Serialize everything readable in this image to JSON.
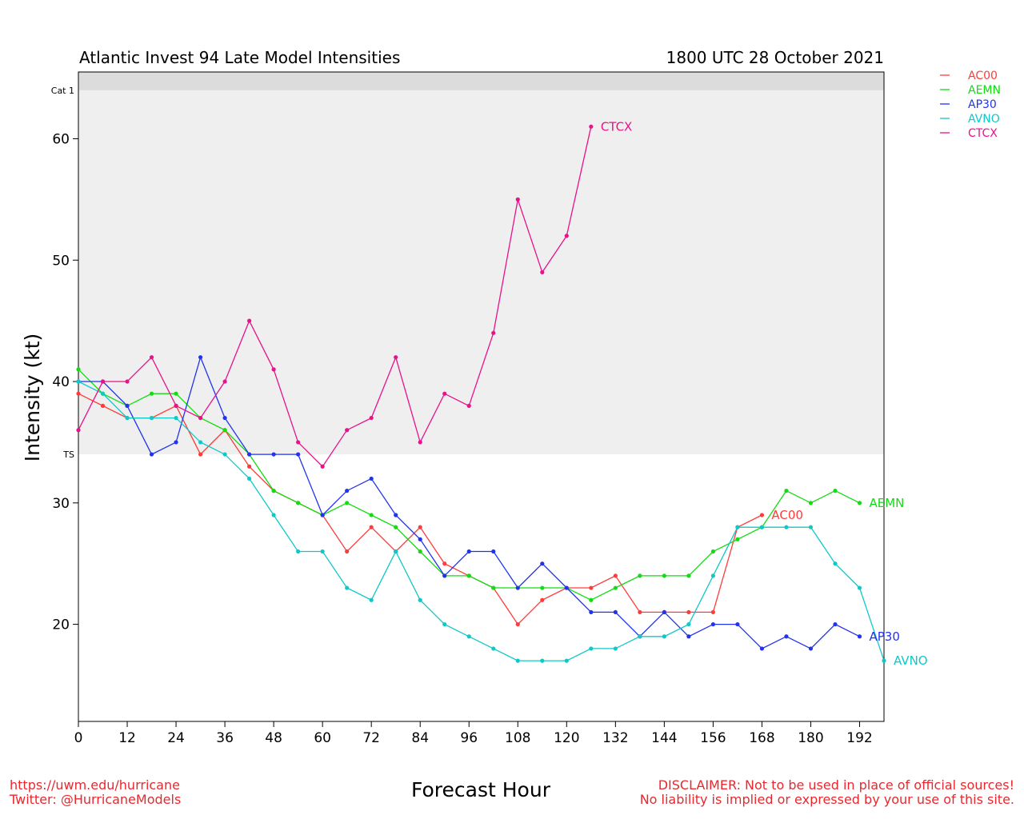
{
  "header": {
    "title_left": "Atlantic Invest 94 Late Model Intensities",
    "title_right": "1800 UTC 28 October 2021"
  },
  "footer": {
    "left_line1": "https://uwm.edu/hurricane",
    "left_line2": "Twitter: @HurricaneModels",
    "right_line1": "DISCLAIMER: Not to be used in place of official sources!",
    "right_line2": "No liability is implied or expressed by your use of this site."
  },
  "chart_data": {
    "type": "line",
    "title": "Atlantic Invest 94 Late Model Intensities",
    "subtitle": "1800 UTC 28 October 2021",
    "xlabel": "Forecast Hour",
    "ylabel": "Intensity (kt)",
    "xlim": [
      0,
      198
    ],
    "ylim": [
      12,
      65.5
    ],
    "x_ticks": [
      0,
      12,
      24,
      36,
      48,
      60,
      72,
      84,
      96,
      108,
      120,
      132,
      144,
      156,
      168,
      180,
      192
    ],
    "y_ticks": [
      20,
      30,
      40,
      50,
      60
    ],
    "bands": [
      {
        "label": "TS",
        "from": 34,
        "to": 64,
        "color": "#efefef"
      },
      {
        "label": "Cat 1",
        "from": 64,
        "to": 65.5,
        "color": "#dcdcdc"
      }
    ],
    "legend_position": "right of plot, top",
    "grid": false,
    "series": [
      {
        "name": "AC00",
        "color": "#ff3b3b",
        "x": [
          0,
          6,
          12,
          18,
          24,
          30,
          36,
          42,
          48,
          54,
          60,
          66,
          72,
          78,
          84,
          90,
          96,
          102,
          108,
          114,
          120,
          126,
          132,
          138,
          144,
          150,
          156,
          162,
          168
        ],
        "y": [
          39,
          38,
          37,
          37,
          38,
          34,
          36,
          33,
          31,
          30,
          29,
          26,
          28,
          26,
          28,
          25,
          24,
          23,
          20,
          22,
          23,
          23,
          24,
          21,
          21,
          21,
          21,
          28,
          29
        ]
      },
      {
        "name": "AEMN",
        "color": "#11dd11",
        "x": [
          0,
          6,
          12,
          18,
          24,
          30,
          36,
          42,
          48,
          54,
          60,
          66,
          72,
          78,
          84,
          90,
          96,
          102,
          108,
          114,
          120,
          126,
          132,
          138,
          144,
          150,
          156,
          162,
          168,
          174,
          180,
          186,
          192
        ],
        "y": [
          41,
          39,
          38,
          39,
          39,
          37,
          36,
          34,
          31,
          30,
          29,
          30,
          29,
          28,
          26,
          24,
          24,
          23,
          23,
          23,
          23,
          22,
          23,
          24,
          24,
          24,
          26,
          27,
          28,
          31,
          30,
          31,
          30
        ]
      },
      {
        "name": "AP30",
        "color": "#2233ee",
        "x": [
          0,
          6,
          12,
          18,
          24,
          30,
          36,
          42,
          48,
          54,
          60,
          66,
          72,
          78,
          84,
          90,
          96,
          102,
          108,
          114,
          120,
          126,
          132,
          138,
          144,
          150,
          156,
          162,
          168,
          174,
          180,
          186,
          192
        ],
        "y": [
          40,
          40,
          38,
          34,
          35,
          42,
          37,
          34,
          34,
          34,
          29,
          31,
          32,
          29,
          27,
          24,
          26,
          26,
          23,
          25,
          23,
          21,
          21,
          19,
          21,
          19,
          20,
          20,
          18,
          19,
          18,
          20,
          19
        ]
      },
      {
        "name": "AVNO",
        "color": "#11c8c8",
        "x": [
          0,
          6,
          12,
          18,
          24,
          30,
          36,
          42,
          48,
          54,
          60,
          66,
          72,
          78,
          84,
          90,
          96,
          102,
          108,
          114,
          120,
          126,
          132,
          138,
          144,
          150,
          156,
          162,
          168,
          174,
          180,
          186,
          192,
          198
        ],
        "y": [
          40,
          39,
          37,
          37,
          37,
          35,
          34,
          32,
          29,
          26,
          26,
          23,
          22,
          26,
          22,
          20,
          19,
          18,
          17,
          17,
          17,
          18,
          18,
          19,
          19,
          20,
          24,
          28,
          28,
          28,
          28,
          25,
          23,
          17
        ]
      },
      {
        "name": "CTCX",
        "color": "#e8128a",
        "x": [
          0,
          6,
          12,
          18,
          24,
          30,
          36,
          42,
          48,
          54,
          60,
          66,
          72,
          78,
          84,
          90,
          96,
          102,
          108,
          114,
          120,
          126
        ],
        "y": [
          36,
          40,
          40,
          42,
          38,
          37,
          40,
          45,
          41,
          35,
          33,
          36,
          37,
          42,
          35,
          39,
          38,
          44,
          55,
          49,
          52,
          61
        ]
      }
    ]
  }
}
